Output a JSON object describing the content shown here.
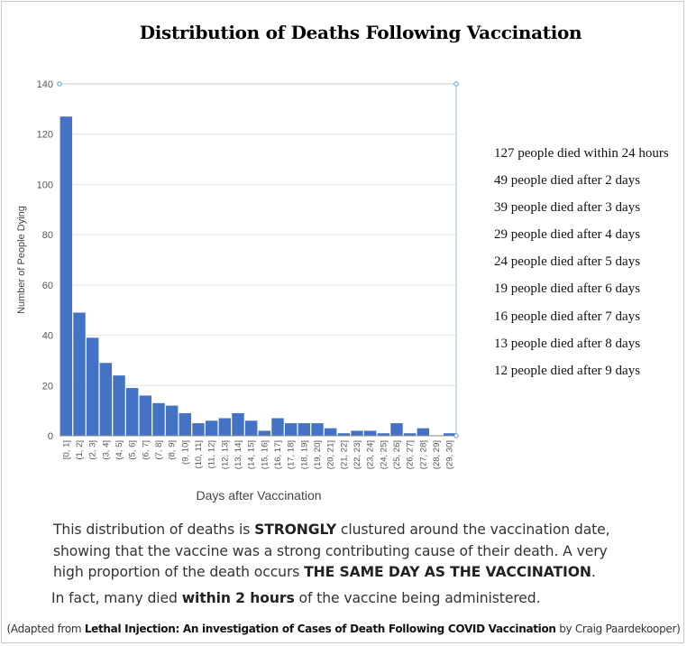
{
  "title": "Distribution of Deaths Following Vaccination",
  "chart_data": {
    "type": "bar",
    "xlabel": "Days after Vaccination",
    "ylabel": "Number of People Dying",
    "ylim": [
      0,
      140
    ],
    "yticks": [
      0,
      20,
      40,
      60,
      80,
      100,
      120,
      140
    ],
    "categories": [
      "[0, 1]",
      "(1, 2]",
      "(2, 3]",
      "(3, 4]",
      "(4, 5]",
      "(5, 6]",
      "(6, 7]",
      "(7, 8]",
      "(8, 9]",
      "(9, 10]",
      "(10, 11]",
      "(11, 12]",
      "(12, 13]",
      "(13, 14]",
      "(14, 15]",
      "(15, 16]",
      "(16, 17]",
      "(17, 18]",
      "(18, 19]",
      "(19, 20]",
      "(20, 21]",
      "(21, 22]",
      "(22, 23]",
      "(23, 24]",
      "(24, 25]",
      "(25, 26]",
      "(26, 27]",
      "(27, 28]",
      "(28, 29]",
      "(29, 30]"
    ],
    "values": [
      127,
      49,
      39,
      29,
      24,
      19,
      16,
      13,
      12,
      9,
      5,
      6,
      7,
      9,
      6,
      2,
      7,
      5,
      5,
      5,
      3,
      1,
      2,
      2,
      1,
      5,
      1,
      3,
      0,
      1
    ],
    "bar_color": "#4472c4",
    "grid": true,
    "legend": "none"
  },
  "notes": [
    "127 people died within 24 hours",
    "49 people died after 2 days",
    "39 people died after 3 days",
    "29 people died after 4 days",
    "24 people died after 5 days",
    "19 people died after 6 days",
    "16 people died after 7 days",
    "13 people died after 8 days",
    "12 people died after 9 days"
  ],
  "paragraph": {
    "p1_a": "This distribution of deaths is ",
    "p1_b": "STRONGLY",
    "p1_c": " clustured around the vaccination date, showing that the vaccine was a strong contributing cause of their death. A very high proportion of the death occurs ",
    "p1_d": "THE SAME DAY AS THE VACCINATION",
    "p1_e": ".",
    "p2_a": "In fact, many died ",
    "p2_b": "within 2 hours",
    "p2_c": " of the vaccine being administered."
  },
  "source": {
    "a": "(Adapted from ",
    "b": "Lethal Injection: An investigation of Cases of Death Following COVID Vaccination",
    "c": " by Craig Paardekooper)"
  }
}
